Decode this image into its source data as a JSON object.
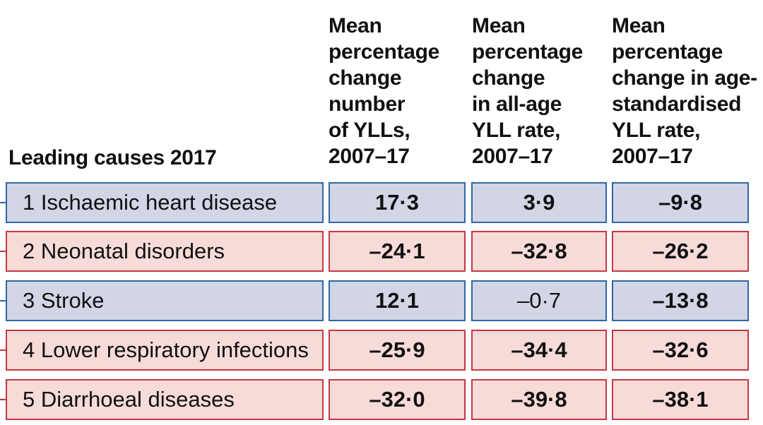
{
  "chart_data": {
    "type": "table",
    "header": {
      "cause": "Leading causes 2017",
      "columns": [
        "Mean\npercentage\nchange\nnumber\nof YLLs,\n2007–17",
        "Mean\npercentage\nchange\nin all-age\nYLL rate,\n2007–17",
        "Mean\npercentage\nchange in age-\nstandardised\nYLL rate,\n2007–17"
      ]
    },
    "rows": [
      {
        "label": "1 Ischaemic heart disease",
        "values": [
          "17·3",
          "3·9",
          "–9·8"
        ],
        "bold": [
          true,
          true,
          true
        ],
        "color": "blue"
      },
      {
        "label": "2 Neonatal disorders",
        "values": [
          "–24·1",
          "–32·8",
          "–26·2"
        ],
        "bold": [
          true,
          true,
          true
        ],
        "color": "red"
      },
      {
        "label": "3 Stroke",
        "values": [
          "12·1",
          "–0·7",
          "–13·8"
        ],
        "bold": [
          true,
          false,
          true
        ],
        "color": "blue"
      },
      {
        "label": "4 Lower respiratory infections",
        "values": [
          "–25·9",
          "–34·4",
          "–32·6"
        ],
        "bold": [
          true,
          true,
          true
        ],
        "color": "red"
      },
      {
        "label": "5 Diarrhoeal diseases",
        "values": [
          "–32·0",
          "–39·8",
          "–38·1"
        ],
        "bold": [
          true,
          true,
          true
        ],
        "color": "red"
      }
    ],
    "colors": {
      "blue_fill": "#d2d5e6",
      "blue_border": "#2e68a5",
      "red_fill": "#f7dbd8",
      "red_border": "#c53844"
    }
  }
}
